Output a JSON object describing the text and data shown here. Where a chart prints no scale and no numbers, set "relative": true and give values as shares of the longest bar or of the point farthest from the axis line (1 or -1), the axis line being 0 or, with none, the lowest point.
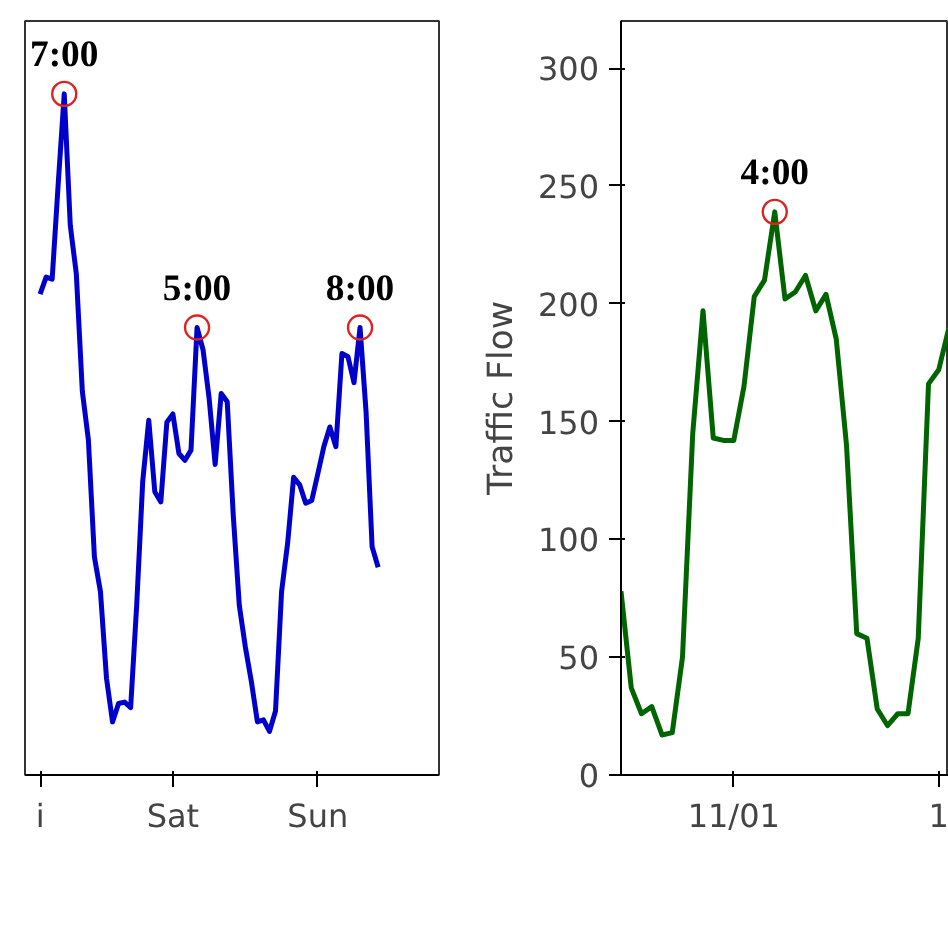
{
  "chart_data": [
    {
      "type": "line",
      "relative": true,
      "tick_labels": "x",
      "grid": false,
      "categories": [
        "i",
        null,
        null,
        null,
        null,
        null,
        null,
        null,
        null,
        null,
        null,
        null,
        null,
        null,
        null,
        null,
        null,
        null,
        null,
        null,
        null,
        null,
        "Sat",
        null,
        null,
        null,
        null,
        null,
        null,
        null,
        null,
        null,
        null,
        null,
        null,
        null,
        null,
        null,
        null,
        null,
        null,
        null,
        null,
        null,
        null,
        null,
        "Sun",
        null,
        null,
        null,
        null,
        null,
        null,
        null,
        null,
        null,
        null
      ],
      "series": [
        {
          "color": "#0000cc",
          "values": [
            0.706,
            0.731,
            0.728,
            0.868,
            1,
            0.807,
            0.736,
            0.563,
            0.492,
            0.32,
            0.269,
            0.142,
            0.078,
            0.105,
            0.107,
            0.099,
            0.249,
            0.431,
            0.521,
            0.416,
            0.401,
            0.518,
            0.53,
            0.472,
            0.462,
            0.477,
            0.657,
            0.624,
            0.553,
            0.456,
            0.56,
            0.548,
            0.381,
            0.249,
            0.188,
            0.137,
            0.078,
            0.081,
            0.064,
            0.094,
            0.269,
            0.34,
            0.437,
            0.426,
            0.399,
            0.403,
            0.442,
            0.482,
            0.511,
            0.482,
            0.619,
            0.614,
            0.576,
            0.657,
            0.533,
            0.335,
            0.305
          ]
        }
      ],
      "annotations": [
        {
          "text": "7:00",
          "y": 1
        },
        {
          "text": "5:00",
          "y": 0.657
        },
        {
          "text": "8:00",
          "y": 0.657
        }
      ]
    },
    {
      "type": "line",
      "ylabel": "Traffic Flow",
      "grid": false,
      "categories": [
        null,
        null,
        null,
        null,
        null,
        null,
        null,
        null,
        null,
        null,
        null,
        "11/01",
        null,
        null,
        null,
        null,
        null,
        null,
        null,
        null,
        null,
        null,
        null,
        null,
        null,
        null,
        null,
        null,
        null,
        null,
        null,
        "1",
        null
      ],
      "series": [
        {
          "color": "#006400",
          "values": [
            78,
            37,
            26,
            29,
            17,
            18,
            50,
            145,
            197,
            143,
            142,
            142,
            165,
            203,
            210,
            239,
            202,
            205,
            212,
            197,
            204,
            185,
            140,
            60,
            58,
            28,
            21,
            26,
            26,
            58,
            166,
            172,
            190
          ]
        }
      ],
      "ylim": [
        0,
        320
      ],
      "yticks": [
        0,
        50,
        100,
        150,
        200,
        250,
        300
      ],
      "annotations": [
        {
          "text": "4:00",
          "y": 239
        }
      ]
    }
  ]
}
